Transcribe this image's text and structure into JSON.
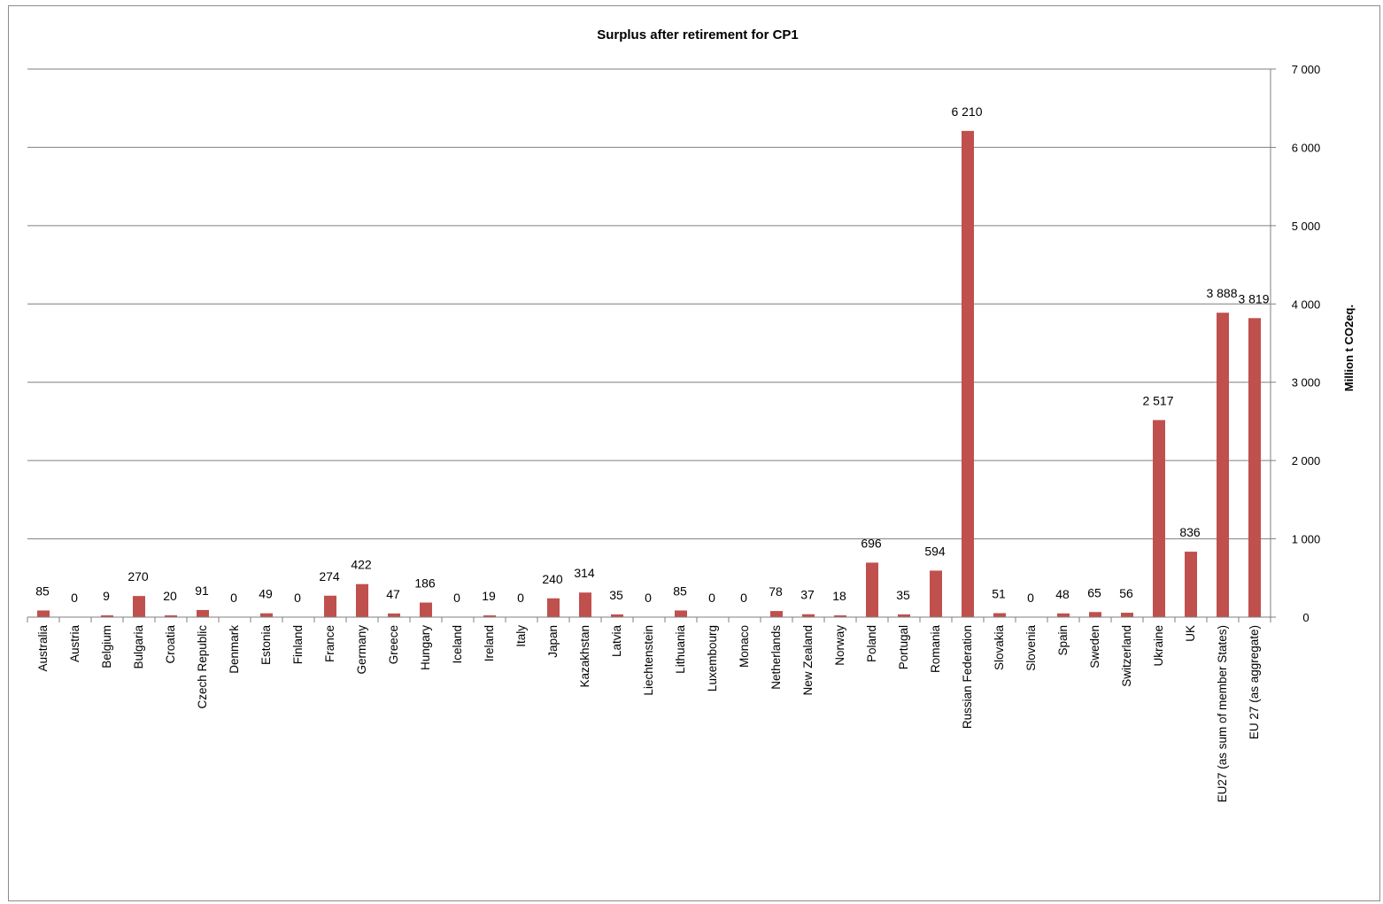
{
  "chart_data": {
    "type": "bar",
    "title": "Surplus after retirement for CP1",
    "xlabel": "",
    "ylabel": "Million  t CO2eq.",
    "ylim": [
      0,
      7000
    ],
    "y_ticks": [
      0,
      1000,
      2000,
      3000,
      4000,
      5000,
      6000,
      7000
    ],
    "y_tick_labels": [
      "0",
      "1 000",
      "2 000",
      "3 000",
      "4 000",
      "5 000",
      "6 000",
      "7 000"
    ],
    "y_axis_side": "right",
    "grid": true,
    "legend": "none",
    "bar_color": "#C0504D",
    "categories": [
      "Australia",
      "Austria",
      "Belgium",
      "Bulgaria",
      "Croatia",
      "Czech Republic",
      "Denmark",
      "Estonia",
      "Finland",
      "France",
      "Germany",
      "Greece",
      "Hungary",
      "Iceland",
      "Ireland",
      "Italy",
      "Japan",
      "Kazakhstan",
      "Latvia",
      "Liechtenstein",
      "Lithuania",
      "Luxembourg",
      "Monaco",
      "Netherlands",
      "New Zealand",
      "Norway",
      "Poland",
      "Portugal",
      "Romania",
      "Russian Federation",
      "Slovakia",
      "Slovenia",
      "Spain",
      "Sweden",
      "Switzerland",
      "Ukraine",
      "UK",
      "EU27 (as sum of member States)",
      "EU 27 (as aggregate)"
    ],
    "values": [
      85,
      0,
      9,
      270,
      20,
      91,
      0,
      49,
      0,
      274,
      422,
      47,
      186,
      0,
      19,
      0,
      240,
      314,
      35,
      0,
      85,
      0,
      0,
      78,
      37,
      18,
      696,
      35,
      594,
      6210,
      51,
      0,
      48,
      65,
      56,
      2517,
      836,
      3888,
      3819
    ],
    "value_labels": [
      "85",
      "0",
      "9",
      "270",
      "20",
      "91",
      "0",
      "49",
      "0",
      "274",
      "422",
      "47",
      "186",
      "0",
      "19",
      "0",
      "240",
      "314",
      "35",
      "0",
      "85",
      "0",
      "0",
      "78",
      "37",
      "18",
      "696",
      "35",
      "594",
      "6 210",
      "51",
      "0",
      "48",
      "65",
      "56",
      "2 517",
      "836",
      "3 888",
      "3 819"
    ]
  }
}
